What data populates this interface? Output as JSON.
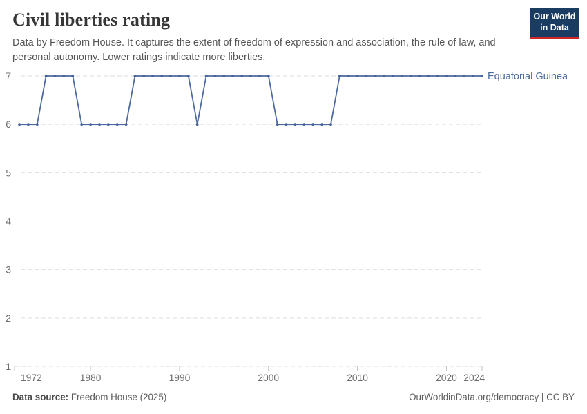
{
  "header": {
    "title": "Civil liberties rating",
    "subtitle": "Data by Freedom House. It captures the extent of freedom of expression and association, the rule of law, and personal autonomy. Lower ratings indicate more liberties.",
    "logo": {
      "line1": "Our World",
      "line2": "in Data"
    }
  },
  "chart_data": {
    "type": "line",
    "title": "Civil liberties rating",
    "entity": "Equatorial Guinea",
    "x": [
      1972,
      1973,
      1974,
      1975,
      1976,
      1977,
      1978,
      1979,
      1980,
      1981,
      1982,
      1983,
      1984,
      1985,
      1986,
      1987,
      1988,
      1989,
      1990,
      1991,
      1992,
      1993,
      1994,
      1995,
      1996,
      1997,
      1998,
      1999,
      2000,
      2001,
      2002,
      2003,
      2004,
      2005,
      2006,
      2007,
      2008,
      2009,
      2010,
      2011,
      2012,
      2013,
      2014,
      2015,
      2016,
      2017,
      2018,
      2019,
      2020,
      2021,
      2022,
      2023,
      2024
    ],
    "series": [
      {
        "name": "Equatorial Guinea",
        "values": [
          6,
          6,
          6,
          7,
          7,
          7,
          7,
          6,
          6,
          6,
          6,
          6,
          6,
          7,
          7,
          7,
          7,
          7,
          7,
          7,
          6,
          7,
          7,
          7,
          7,
          7,
          7,
          7,
          7,
          6,
          6,
          6,
          6,
          6,
          6,
          6,
          7,
          7,
          7,
          7,
          7,
          7,
          7,
          7,
          7,
          7,
          7,
          7,
          7,
          7,
          7,
          7,
          7
        ]
      }
    ],
    "xlim": [
      1972,
      2024
    ],
    "ylim": [
      1,
      7
    ],
    "yticks": [
      1,
      2,
      3,
      4,
      5,
      6,
      7
    ],
    "xticks": [
      1972,
      1980,
      1990,
      2000,
      2010,
      2020,
      2024
    ],
    "grid": true,
    "legend_position": "end-of-line-label",
    "colors": {
      "line": "#4c6a9c",
      "point": "#46639b",
      "entity_label": "#4c6a9c",
      "gridline": "#dedede",
      "tick": "#c2c2c2",
      "axis_text": "#6e6e6e"
    }
  },
  "footer": {
    "source_label": "Data source:",
    "source_value": " Freedom House (2025)",
    "right_text": "OurWorldinData.org/democracy | CC BY"
  },
  "brand": {
    "logo_bg": "#1a3c62",
    "logo_red": "#cf2429"
  }
}
